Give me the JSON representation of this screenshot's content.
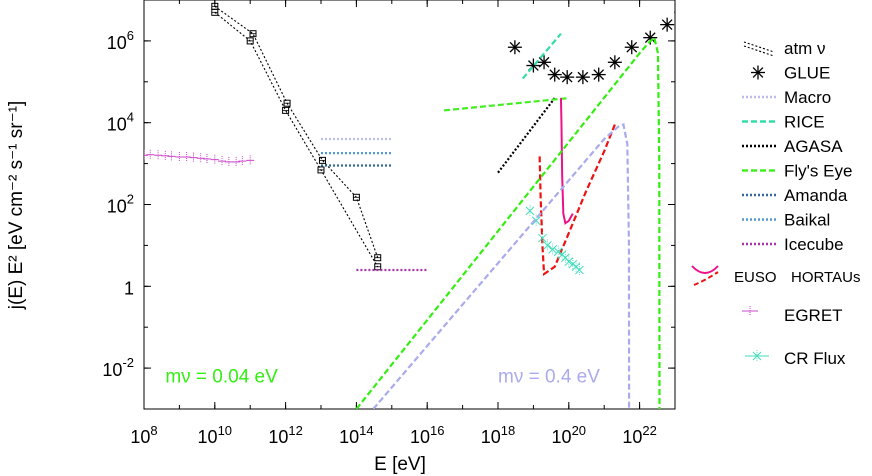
{
  "chart_data": {
    "type": "line",
    "xlabel": "E [eV]",
    "ylabel": "j(E) E² [eV cm⁻² s⁻¹ sr⁻¹]",
    "x_scale": "log",
    "y_scale": "log",
    "xlim": [
      100000000.0,
      1e+23
    ],
    "ylim": [
      0.001,
      10000000.0
    ],
    "x_ticks": [
      {
        "value": 100000000.0,
        "base": "10",
        "exp": "8"
      },
      {
        "value": 10000000000.0,
        "base": "10",
        "exp": "10"
      },
      {
        "value": 1000000000000.0,
        "base": "10",
        "exp": "12"
      },
      {
        "value": 100000000000000.0,
        "base": "10",
        "exp": "14"
      },
      {
        "value": 1e+16,
        "base": "10",
        "exp": "16"
      },
      {
        "value": 1e+18,
        "base": "10",
        "exp": "18"
      },
      {
        "value": 1e+20,
        "base": "10",
        "exp": "20"
      },
      {
        "value": 1e+22,
        "base": "10",
        "exp": "22"
      }
    ],
    "y_ticks": [
      {
        "value": 1000000.0,
        "base": "10",
        "exp": "6"
      },
      {
        "value": 10000.0,
        "base": "10",
        "exp": "4"
      },
      {
        "value": 100.0,
        "base": "10",
        "exp": "2"
      },
      {
        "value": 1,
        "base": "1",
        "exp": ""
      },
      {
        "value": 0.01,
        "base": "10",
        "exp": "-2"
      }
    ],
    "annotations": [
      {
        "text": "mν = 0.04 eV",
        "x": 400000000.0,
        "y": 0.0045,
        "color": "#33ee11"
      },
      {
        "text": "mν = 0.4 eV",
        "x": 1e+18,
        "y": 0.0045,
        "color": "#aaaaee"
      }
    ],
    "series": [
      {
        "name": "atm ν",
        "color": "#000000",
        "style": "dotted-markers",
        "x": [
          10000000000.0,
          100000000000.0,
          1000000000000.0,
          10000000000000.0,
          400000000000000.0
        ],
        "y": [
          5000000.0,
          1000000.0,
          20000.0,
          700.0,
          3
        ]
      },
      {
        "name": "",
        "color": "#000000",
        "style": "dotted-markers",
        "x": [
          10000000000.0,
          120000000000.0,
          1100000000000.0,
          11000000000000.0,
          100000000000000.0,
          400000000000000.0
        ],
        "y": [
          7000000.0,
          1500000.0,
          30000.0,
          1200.0,
          150.0,
          5
        ]
      },
      {
        "name": "GLUE",
        "color": "#000000",
        "style": "star-markers",
        "x": [
          3e+18,
          1e+19,
          2e+19,
          4e+19,
          9e+19,
          2.5e+20,
          7e+20,
          2e+21,
          6e+21,
          2e+22,
          6e+22,
          1.5e+23
        ],
        "y": [
          700000.0,
          250000.0,
          300000.0,
          150000.0,
          130000.0,
          130000.0,
          150000.0,
          300000.0,
          700000.0,
          1200000.0,
          2500000.0,
          5000000.0
        ]
      },
      {
        "name": "Macro",
        "color": "#bbbbee",
        "style": "dotted",
        "x": [
          10000000000000.0,
          1000000000000000.0
        ],
        "y": [
          4000,
          4000
        ]
      },
      {
        "name": "RICE",
        "color": "#33ddaa",
        "style": "dashed",
        "x": [
          5e+18,
          6e+19
        ],
        "y": [
          120000.0,
          1500000.0
        ]
      },
      {
        "name": "AGASA",
        "color": "#000000",
        "style": "dotted",
        "x": [
          1e+18,
          4e+19
        ],
        "y": [
          600,
          40000.0
        ]
      },
      {
        "name": "Fly's Eye",
        "color": "#44ee22",
        "style": "dashed",
        "x": [
          3e+16,
          1e+20
        ],
        "y": [
          20000.0,
          40000.0
        ]
      },
      {
        "name": "Amanda",
        "color": "#336699",
        "style": "dotted",
        "x": [
          10000000000000.0,
          1000000000000000.0
        ],
        "y": [
          900,
          900
        ]
      },
      {
        "name": "Baikal",
        "color": "#5599cc",
        "style": "dotted",
        "x": [
          10000000000000.0,
          1000000000000000.0
        ],
        "y": [
          1800,
          1800
        ]
      },
      {
        "name": "Icecube",
        "color": "#aa33aa",
        "style": "dotted",
        "x": [
          100000000000000.0,
          1e+16
        ],
        "y": [
          2.5,
          2.5
        ]
      },
      {
        "name": "EUSO",
        "color": "#ee1188",
        "style": "solid",
        "x": [
          6e+19,
          6.2e+19,
          6.5e+19,
          7e+19,
          8e+19,
          1e+20,
          1.3e+20
        ],
        "y": [
          40000.0,
          10000.0,
          500,
          60,
          35,
          40,
          60
        ]
      },
      {
        "name": "HORTAUs",
        "color": "#ee1111",
        "style": "dashed",
        "x": [
          1.5e+19,
          1.6e+19,
          1.8e+19,
          2e+19,
          4e+19,
          1e+20,
          3e+20,
          1e+21,
          2e+21
        ],
        "y": [
          1500,
          150,
          10,
          2,
          3,
          20,
          200,
          2000,
          9000
        ]
      },
      {
        "name": "EGRET",
        "color": "#cc44cc",
        "style": "error-markers",
        "x": [
          100000000.0,
          150000000.0,
          250000000.0,
          400000000.0,
          600000000.0,
          1000000000.0,
          1600000000.0,
          2500000000.0,
          4000000000.0,
          6000000000.0,
          10000000000.0,
          16000000000.0,
          25000000000.0,
          40000000000.0,
          60000000000.0,
          100000000000.0
        ],
        "y": [
          1600,
          1650,
          1600,
          1550,
          1500,
          1450,
          1450,
          1400,
          1350,
          1300,
          1250,
          1150,
          1100,
          1100,
          1150,
          1200
        ]
      },
      {
        "name": "CR Flux",
        "color": "#44ddbb",
        "style": "cross-markers",
        "x": [
          8e+18,
          1.2e+19,
          1.8e+19,
          2.5e+19,
          3.5e+19,
          5e+19,
          6.5e+19,
          8e+19,
          1e+20,
          1.3e+20,
          1.6e+20,
          2e+20
        ],
        "y": [
          70,
          40,
          15,
          10,
          8,
          7,
          6,
          5,
          4,
          3.5,
          3,
          2.5
        ]
      },
      {
        "name": "",
        "color": "#33ee11",
        "style": "dashed",
        "x": [
          100000000000000.0,
          1e+22,
          1.8e+22,
          2.6e+22,
          3.3e+22,
          3.6e+22,
          3.65e+22
        ],
        "y": [
          0.001,
          500000.0,
          900000.0,
          1200000.0,
          500000.0,
          1000,
          0.001
        ]
      },
      {
        "name": "",
        "color": "#aaaaee",
        "style": "dashed",
        "x": [
          300000000000000.0,
          1e+21,
          2.5e+21,
          3.5e+21,
          4.5e+21,
          5e+21,
          5.05e+21
        ],
        "y": [
          0.001,
          4000,
          8000,
          9000,
          3000,
          10,
          0.001
        ]
      }
    ],
    "legend": [
      {
        "label": "atm ν",
        "marker": "atm",
        "row": 0
      },
      {
        "label": "GLUE",
        "marker": "star",
        "row": 1
      },
      {
        "label": "Macro",
        "marker": "line",
        "row": 2
      },
      {
        "label": "RICE",
        "marker": "line",
        "row": 3
      },
      {
        "label": "AGASA",
        "marker": "line",
        "row": 4
      },
      {
        "label": "Fly's Eye",
        "marker": "line",
        "row": 5
      },
      {
        "label": "Amanda",
        "marker": "line",
        "row": 6
      },
      {
        "label": "Baikal",
        "marker": "line",
        "row": 7
      },
      {
        "label": "Icecube",
        "marker": "line",
        "row": 8
      }
    ],
    "legend_placement": "right",
    "legend_extra": {
      "euso_label": "EUSO",
      "hortaus_label": "HORTAUs",
      "egret_label": "EGRET",
      "crflux_label": "CR Flux"
    }
  }
}
